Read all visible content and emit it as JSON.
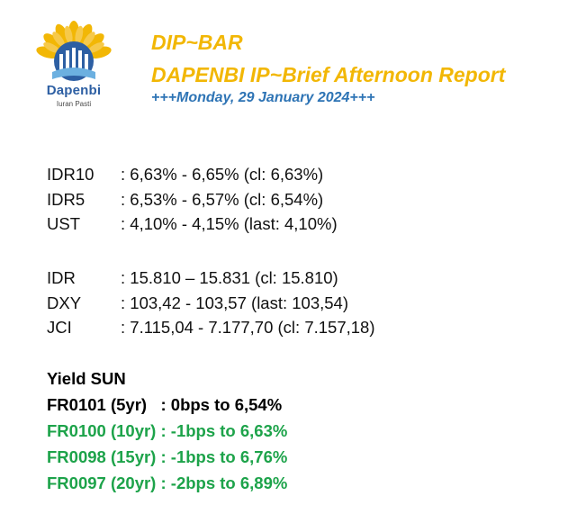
{
  "logo": {
    "name": "Dapenbi",
    "tagline": "Iuran Pasti",
    "icon": "sun-building-logo-icon",
    "colors": {
      "petals": "#f2b705",
      "building": "#2d5fa3",
      "wave": "#6cb0e0"
    }
  },
  "header": {
    "title": "DIP~BAR",
    "subtitle": "DAPENBI IP~Brief Afternoon Report",
    "date": "+++Monday, 29 January 2024+++"
  },
  "rates": [
    {
      "label": "IDR10",
      "value": ": 6,63% - 6,65% (cl: 6,63%)"
    },
    {
      "label": "IDR5",
      "value": ": 6,53% - 6,57% (cl: 6,54%)"
    },
    {
      "label": "UST",
      "value": ": 4,10% - 4,15% (last: 4,10%)"
    }
  ],
  "fx": [
    {
      "label": "IDR",
      "value": ": 15.810 – 15.831 (cl: 15.810)"
    },
    {
      "label": "DXY",
      "value": ": 103,42 - 103,57 (last: 103,54)"
    },
    {
      "label": "JCI",
      "value": ": 7.115,04 - 7.177,70 (cl: 7.157,18)"
    }
  ],
  "yield_sun": {
    "heading": "Yield SUN",
    "items": [
      {
        "text": "FR0101 (5yr)   : 0bps to 6,54%",
        "color": "#000000"
      },
      {
        "text": "FR0100 (10yr) : -1bps to 6,63%",
        "color": "#1da34a"
      },
      {
        "text": "FR0098 (15yr) : -1bps to 6,76%",
        "color": "#1da34a"
      },
      {
        "text": "FR0097 (20yr) : -2bps to 6,89%",
        "color": "#1da34a"
      }
    ]
  },
  "colors": {
    "title": "#f2b705",
    "date": "#2e74b5",
    "positive_green": "#1da34a"
  }
}
